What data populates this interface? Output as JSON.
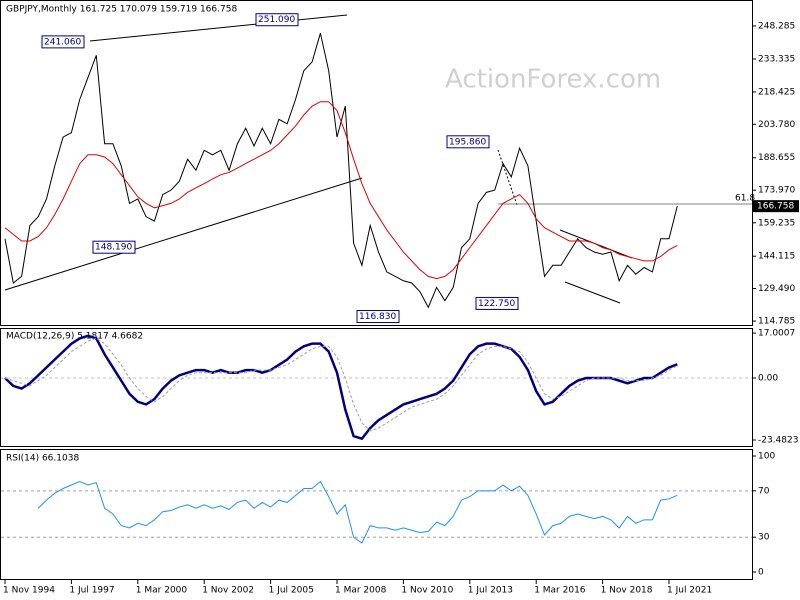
{
  "chart_data": [
    {
      "type": "line",
      "title": "GBPJPY,Monthly  161.725 170.079 159.719 166.758",
      "watermark": "ActionForex.com",
      "fib_label": "61.8",
      "ylim": [
        113.0,
        258.2
      ],
      "yticks": [
        114.785,
        {
          "value": 129.49,
          "label": "129.490"
        },
        144.115,
        159.235,
        {
          "value": 173.97,
          "label": "173.970"
        },
        188.655,
        {
          "value": 203.78,
          "label": "203.780"
        },
        218.425,
        233.335,
        248.285
      ],
      "last_price": {
        "value": 166.758,
        "label": "166.758"
      },
      "annotations": [
        {
          "value": 241.06,
          "label": "241.060"
        },
        {
          "value": 251.09,
          "label": "251.090"
        },
        {
          "value": 195.86,
          "label": "195.860"
        },
        {
          "value": 148.19,
          "label": "148.190"
        },
        {
          "value": 116.83,
          "label": "116.830"
        },
        {
          "value": 122.75,
          "label": "122.750"
        }
      ],
      "series": [
        {
          "color": "#000000",
          "values": [
            152,
            132,
            135,
            158,
            162,
            170,
            185,
            198,
            200,
            215,
            225,
            235,
            195,
            195,
            185,
            168,
            170,
            162,
            160,
            172,
            174,
            178,
            188,
            183,
            192,
            190,
            192,
            183,
            195,
            202,
            194,
            202,
            195,
            206,
            204,
            215,
            228,
            232,
            245,
            228,
            198,
            212,
            150,
            140,
            158,
            146,
            137,
            135,
            133,
            132,
            128,
            121,
            130,
            124,
            130,
            148,
            152,
            168,
            173,
            174,
            186,
            180,
            193,
            185,
            160,
            135,
            140,
            140,
            146,
            152,
            148,
            146,
            145,
            146,
            133,
            140,
            136,
            139,
            137,
            152,
            152,
            166.758
          ]
        },
        {
          "color": "#e00000",
          "values": [
            157,
            154,
            151,
            151,
            153,
            157,
            163,
            170,
            178,
            186,
            190,
            190,
            189,
            186,
            181,
            176,
            171,
            168,
            166,
            167,
            168,
            170,
            173,
            175,
            177,
            179,
            181,
            182,
            184,
            186,
            188,
            190,
            192,
            195,
            199,
            203,
            208,
            212,
            214,
            214,
            210,
            200,
            188,
            177,
            168,
            162,
            156,
            151,
            146,
            142,
            138,
            135,
            134,
            135,
            138,
            143,
            148,
            153,
            158,
            163,
            168,
            170,
            172,
            168,
            161,
            157,
            155,
            153,
            151,
            151,
            151,
            150,
            148,
            147,
            145,
            144,
            143,
            142,
            142,
            144,
            147,
            149
          ]
        }
      ]
    },
    {
      "type": "line",
      "title": "MACD(12,26,9) 5.1817 4.6682",
      "ylim": [
        -25.76,
        18.94
      ],
      "yticks": [
        -23.4823,
        {
          "value": 0,
          "label": "0.00"
        },
        17.0007
      ],
      "series": [
        {
          "color": "#000080",
          "values": [
            0,
            -3,
            -4,
            -2,
            1,
            4,
            7,
            10,
            13,
            15,
            16,
            15,
            9,
            4,
            -1,
            -6,
            -9,
            -10,
            -8,
            -4,
            -1,
            1,
            2,
            3,
            3,
            2,
            3,
            2,
            2,
            3,
            3,
            2,
            3,
            5,
            7,
            10,
            12,
            13,
            13,
            10,
            2,
            -12,
            -22,
            -23,
            -19,
            -16,
            -14,
            -12,
            -10,
            -9,
            -8,
            -7,
            -6,
            -4,
            -1,
            4,
            9,
            12,
            13,
            13,
            12,
            11,
            8,
            3,
            -5,
            -10,
            -9,
            -6,
            -3,
            -1,
            0,
            0,
            0,
            0,
            -1,
            -2,
            -1,
            0,
            0,
            2,
            4,
            5.1817
          ]
        },
        {
          "color": "#a0a0a0",
          "values": [
            0,
            -1,
            -2,
            -3,
            -1,
            1,
            4,
            7,
            10,
            12,
            14,
            15,
            13,
            9,
            5,
            0,
            -4,
            -7,
            -9,
            -7,
            -4,
            -1,
            1,
            2,
            2,
            2,
            2,
            2,
            2,
            2,
            3,
            3,
            3,
            4,
            5,
            7,
            9,
            11,
            12,
            12,
            8,
            0,
            -10,
            -17,
            -20,
            -19,
            -17,
            -15,
            -13,
            -11,
            -10,
            -9,
            -8,
            -6,
            -3,
            1,
            5,
            9,
            11,
            12,
            12,
            11,
            10,
            6,
            0,
            -6,
            -8,
            -7,
            -5,
            -3,
            -1,
            0,
            0,
            0,
            0,
            -1,
            -1,
            -1,
            0,
            1,
            3,
            4.6682
          ]
        }
      ]
    },
    {
      "type": "line",
      "title": "RSI(14) 66.1038",
      "ylim": [
        -6.9,
        105.2
      ],
      "yticks": [
        0,
        30,
        70,
        100
      ],
      "categories": [
        "1 Nov 1994",
        null,
        null,
        null,
        null,
        null,
        null,
        null,
        "1 Jul 1997",
        null,
        null,
        null,
        null,
        null,
        null,
        null,
        "1 Mar 2000",
        null,
        null,
        null,
        null,
        null,
        null,
        null,
        "1 Nov 2002",
        null,
        null,
        null,
        null,
        null,
        null,
        null,
        "1 Jul 2005",
        null,
        null,
        null,
        null,
        null,
        null,
        null,
        "1 Mar 2008",
        null,
        null,
        null,
        null,
        null,
        null,
        null,
        "1 Nov 2010",
        null,
        null,
        null,
        null,
        null,
        null,
        null,
        "1 Jul 2013",
        null,
        null,
        null,
        null,
        null,
        null,
        null,
        "1 Mar 2016",
        null,
        null,
        null,
        null,
        null,
        null,
        null,
        "1 Nov 2018",
        null,
        null,
        null,
        null,
        null,
        null,
        null,
        "1 Jul 2021",
        null
      ],
      "series": [
        {
          "color": "#1e90ff",
          "values": [
            null,
            null,
            null,
            null,
            55,
            62,
            68,
            72,
            75,
            78,
            75,
            77,
            55,
            50,
            40,
            38,
            42,
            40,
            45,
            52,
            53,
            56,
            58,
            55,
            58,
            55,
            57,
            54,
            60,
            62,
            55,
            60,
            56,
            62,
            60,
            66,
            72,
            72,
            78,
            65,
            50,
            58,
            30,
            25,
            40,
            38,
            38,
            36,
            38,
            36,
            34,
            35,
            43,
            40,
            48,
            62,
            65,
            70,
            70,
            70,
            75,
            70,
            74,
            66,
            50,
            32,
            40,
            42,
            48,
            50,
            48,
            46,
            48,
            45,
            38,
            48,
            42,
            45,
            45,
            62,
            63,
            66.1038
          ]
        }
      ]
    }
  ]
}
